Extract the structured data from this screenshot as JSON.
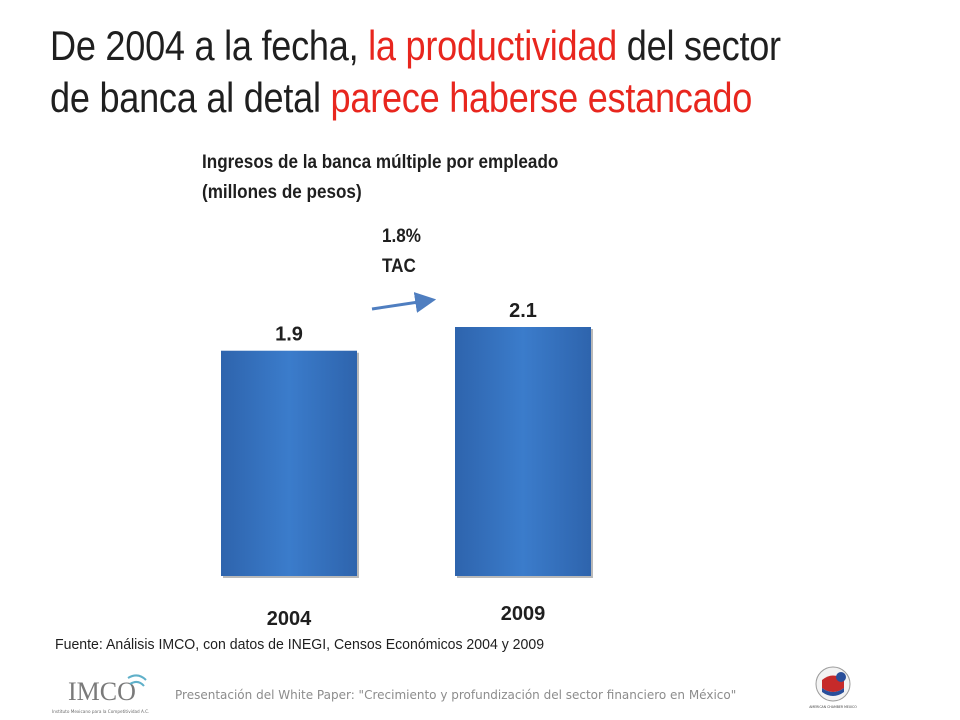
{
  "title": {
    "part1": "De 2004 a la fecha, ",
    "part2": "la productividad",
    "part3": " del sector",
    "part4": "de banca al detal ",
    "part5": "parece haberse estancado"
  },
  "chart_title": {
    "line1": "Ingresos de la banca múltiple por empleado",
    "line2": "(millones de pesos)"
  },
  "annotation": {
    "line1": "1.8%",
    "line2": "TAC"
  },
  "source": "Fuente: Análisis IMCO, con datos de INEGI, Censos Económicos 2004 y 2009",
  "footer": {
    "text": "Presentación del White Paper: \"Crecimiento y profundización del sector financiero en México\"",
    "left_logo": {
      "name": "IMCO",
      "tagline": "Instituto Mexicano para la Competitividad A.C."
    },
    "right_logo": {
      "name": "AMERICAN CHAMBER MEXICO"
    }
  },
  "colors": {
    "accent_red": "#e8261e",
    "bar_blue": "#3a78c6",
    "arrow_blue": "#4f7ec0"
  },
  "chart_data": {
    "type": "bar",
    "categories": [
      "2004",
      "2009"
    ],
    "values": [
      1.9,
      2.1
    ],
    "data_labels": [
      "1.9",
      "2.1"
    ],
    "title": "Ingresos de la banca múltiple por empleado (millones de pesos)",
    "xlabel": "",
    "ylabel": "",
    "ylim": [
      0,
      2.1
    ],
    "grid": false,
    "legend": "none"
  }
}
